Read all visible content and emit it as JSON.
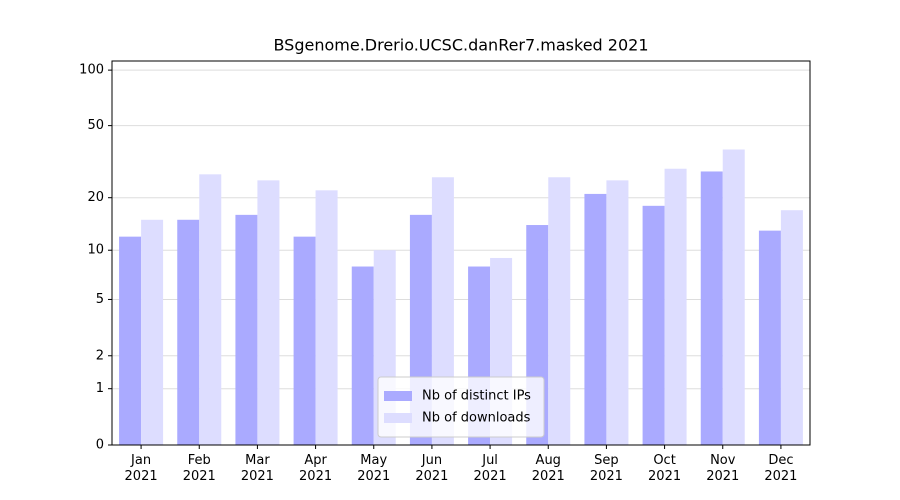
{
  "chart_data": {
    "type": "bar",
    "title": "BSgenome.Drerio.UCSC.danRer7.masked 2021",
    "categories": [
      "Jan\n2021",
      "Feb\n2021",
      "Mar\n2021",
      "Apr\n2021",
      "May\n2021",
      "Jun\n2021",
      "Jul\n2021",
      "Aug\n2021",
      "Sep\n2021",
      "Oct\n2021",
      "Nov\n2021",
      "Dec\n2021"
    ],
    "series": [
      {
        "name": "Nb of distinct IPs",
        "color": "#aaaaff",
        "values": [
          12,
          15,
          16,
          12,
          8,
          16,
          8,
          14,
          21,
          18,
          28,
          13
        ]
      },
      {
        "name": "Nb of downloads",
        "color": "#ddddff",
        "values": [
          15,
          27,
          25,
          22,
          10,
          26,
          9,
          26,
          25,
          29,
          37,
          17
        ]
      }
    ],
    "yscale": "log1p",
    "ylim": [
      0,
      112
    ],
    "yticks": [
      0,
      1,
      2,
      5,
      10,
      20,
      50,
      100
    ],
    "grid": true,
    "legend": "lower center"
  }
}
